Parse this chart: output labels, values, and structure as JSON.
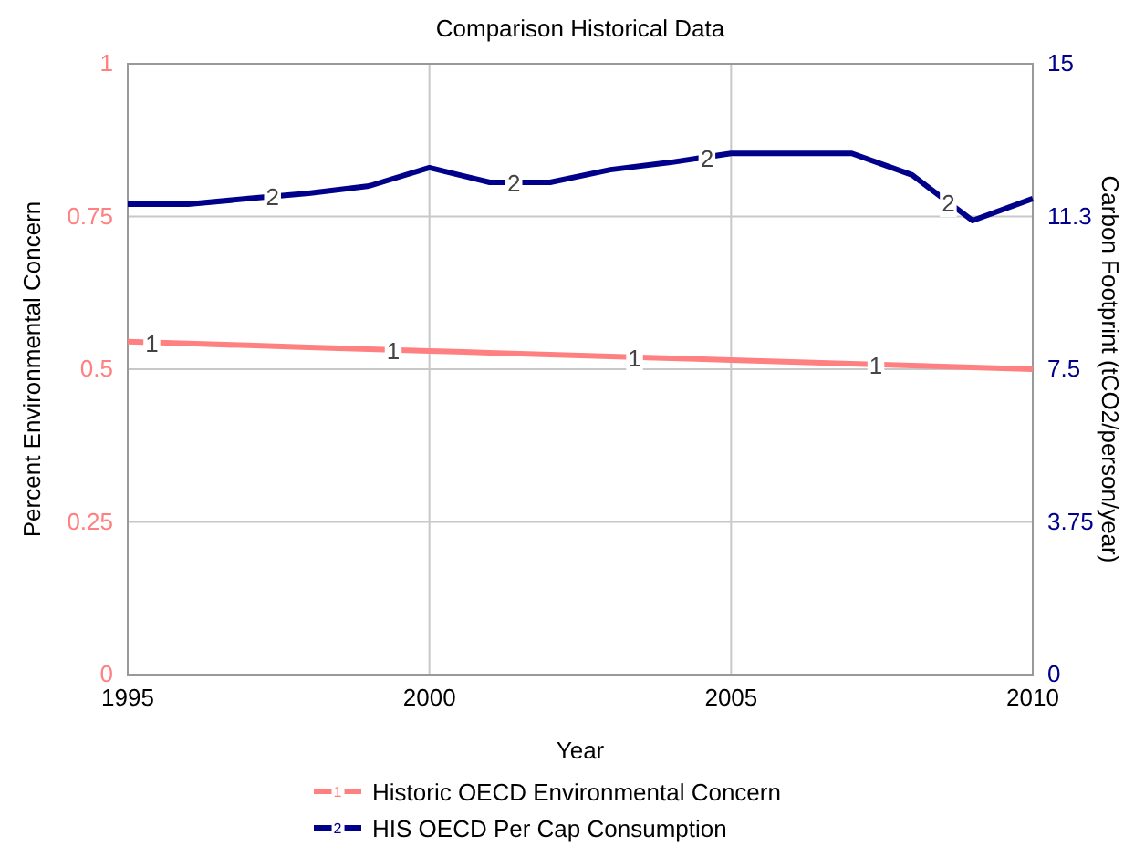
{
  "chart_data": {
    "type": "line",
    "title": "Comparison Historical Data",
    "xlabel": "Year",
    "ylabel": "Percent Environmental Concern",
    "y2label": "Carbon Footprint (tCO2/person/year)",
    "x": [
      1995,
      1996,
      1997,
      1998,
      1999,
      2000,
      2001,
      2002,
      2003,
      2004,
      2005,
      2006,
      2007,
      2008,
      2009,
      2010
    ],
    "series": [
      {
        "name": "Historic OECD Environmental Concern",
        "color": "#ff8080",
        "values": [
          0.545,
          0.542,
          0.539,
          0.536,
          0.533,
          0.53,
          0.527,
          0.524,
          0.521,
          0.518,
          0.515,
          0.512,
          0.509,
          0.506,
          0.503,
          0.5
        ]
      },
      {
        "name": "HIS OECD Per Cap Consumption",
        "color": "#00008b",
        "axis": "y2",
        "values": [
          11.55,
          11.55,
          11.69,
          11.82,
          12.0,
          12.45,
          12.09,
          12.09,
          12.4,
          12.58,
          12.8,
          12.8,
          12.8,
          12.27,
          11.15,
          11.69
        ]
      }
    ],
    "xlim": [
      1995,
      2010
    ],
    "xticks": [
      1995,
      2000,
      2005,
      2010
    ],
    "ylim": [
      0,
      1
    ],
    "yticks": [
      0,
      0.25,
      0.5,
      0.75,
      1
    ],
    "y2lim": [
      0,
      15
    ],
    "y2ticks": [
      0,
      3.75,
      7.5,
      {
        "value": 11.25,
        "label": "11.3"
      },
      15
    ],
    "annotations": [
      {
        "text": "1",
        "x": 1995.4,
        "y": 0.544
      },
      {
        "text": "1",
        "x": 1999.4,
        "y": 0.532
      },
      {
        "text": "1",
        "x": 2003.4,
        "y": 0.52
      },
      {
        "text": "1",
        "x": 2007.4,
        "y": 0.508
      },
      {
        "text": "2",
        "x": 1997.4,
        "y": 0.783
      },
      {
        "text": "2",
        "x": 2001.4,
        "y": 0.806
      },
      {
        "text": "2",
        "x": 2004.6,
        "y": 0.847
      },
      {
        "text": "2",
        "x": 2008.6,
        "y": 0.773
      }
    ],
    "grid": true,
    "legend": "bottom",
    "marker": "none",
    "line_style": "solid"
  }
}
